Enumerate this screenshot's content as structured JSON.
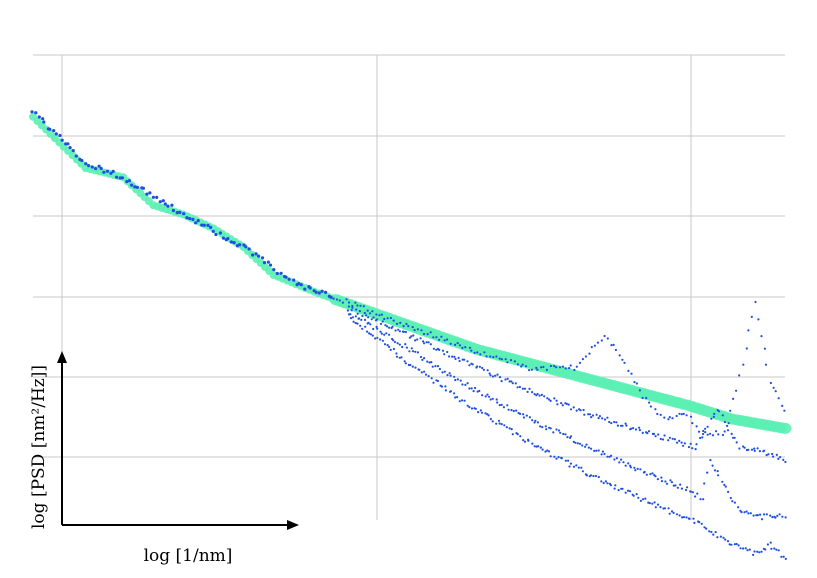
{
  "chart_data": {
    "type": "scatter",
    "title": "",
    "xlabel": "log [1/nm]",
    "ylabel": "log [PSD [nm²/Hz]]",
    "xscale": "log",
    "yscale": "log",
    "xlim": [
      0.0,
      1.0
    ],
    "ylim": [
      0.0,
      1.0
    ],
    "grid": true,
    "legend": "none",
    "colors": {
      "measured": "#1f4fe0",
      "fit": "#5cf0b4",
      "grid": "#c8c8c8",
      "axis": "#000000"
    },
    "series": [
      {
        "role": "fit",
        "color": "#5cf0b4",
        "x": [
          0.0,
          0.07,
          0.12,
          0.16,
          0.2,
          0.24,
          0.28,
          0.32,
          0.38,
          0.45,
          0.52,
          0.59,
          0.66,
          0.73,
          0.8,
          0.87,
          0.93,
          1.0
        ],
        "y": [
          0.91,
          0.8,
          0.78,
          0.72,
          0.7,
          0.67,
          0.63,
          0.57,
          0.53,
          0.49,
          0.45,
          0.41,
          0.38,
          0.35,
          0.32,
          0.29,
          0.26,
          0.24
        ]
      },
      {
        "role": "measured",
        "color": "#1f4fe0",
        "x": [
          0.0,
          0.07,
          0.12,
          0.2,
          0.28,
          0.35,
          0.42,
          0.5,
          0.58,
          0.66,
          0.72,
          0.76,
          0.78,
          0.81,
          0.84,
          0.87,
          0.89,
          0.92,
          0.94,
          0.96,
          0.98,
          1.0
        ],
        "y": [
          0.92,
          0.81,
          0.78,
          0.7,
          0.63,
          0.55,
          0.51,
          0.46,
          0.41,
          0.37,
          0.37,
          0.44,
          0.4,
          0.31,
          0.26,
          0.27,
          0.23,
          0.23,
          0.35,
          0.51,
          0.34,
          0.28
        ]
      },
      {
        "role": "measured",
        "color": "#1f4fe0",
        "x": [
          0.42,
          0.5,
          0.58,
          0.66,
          0.74,
          0.82,
          0.88,
          0.91,
          0.94,
          0.97,
          1.0
        ],
        "y": [
          0.5,
          0.44,
          0.38,
          0.32,
          0.27,
          0.23,
          0.2,
          0.28,
          0.2,
          0.19,
          0.17
        ]
      },
      {
        "role": "measured",
        "color": "#1f4fe0",
        "x": [
          0.42,
          0.5,
          0.58,
          0.66,
          0.74,
          0.82,
          0.87,
          0.89,
          0.9,
          0.94,
          0.97,
          1.0
        ],
        "y": [
          0.49,
          0.41,
          0.33,
          0.26,
          0.2,
          0.14,
          0.11,
          0.09,
          0.17,
          0.06,
          0.05,
          0.05
        ]
      },
      {
        "role": "measured",
        "color": "#1f4fe0",
        "x": [
          0.42,
          0.5,
          0.58,
          0.66,
          0.74,
          0.82,
          0.88,
          0.92,
          0.96,
          0.98,
          1.0
        ],
        "y": [
          0.48,
          0.38,
          0.29,
          0.21,
          0.14,
          0.08,
          0.04,
          0.0,
          -0.03,
          -0.01,
          -0.04
        ]
      }
    ]
  }
}
